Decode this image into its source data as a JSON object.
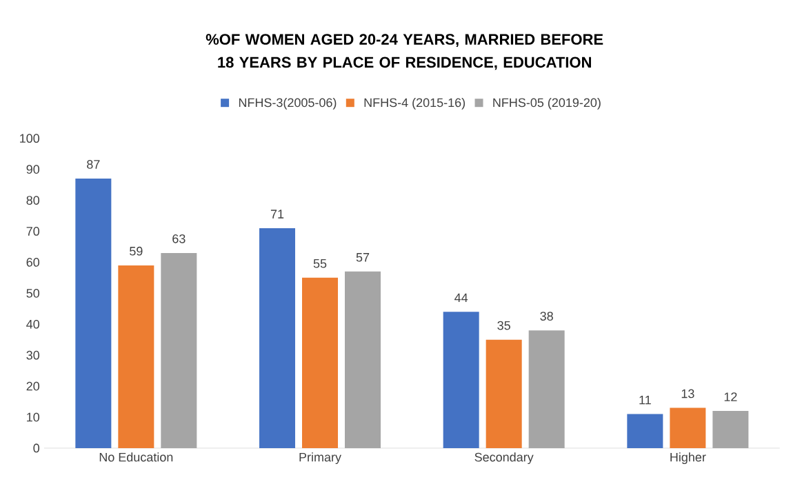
{
  "chart_data": {
    "type": "bar",
    "title": "%OF WOMEN AGED 20-24 YEARS, MARRIED BEFORE 18 YEARS BY PLACE OF RESIDENCE, EDUCATION",
    "categories": [
      "No Education",
      "Primary",
      "Secondary",
      "Higher"
    ],
    "series": [
      {
        "name": "NFHS-3(2005-06)",
        "color": "#4472c4",
        "values": [
          87,
          71,
          44,
          11
        ]
      },
      {
        "name": "NFHS-4 (2015-16)",
        "color": "#ed7d31",
        "values": [
          59,
          55,
          35,
          13
        ]
      },
      {
        "name": "NFHS-05 (2019-20)",
        "color": "#a5a5a5",
        "values": [
          63,
          57,
          38,
          12
        ]
      }
    ],
    "ylim": [
      0,
      100
    ],
    "yticks": [
      0,
      10,
      20,
      30,
      40,
      50,
      60,
      70,
      80,
      90,
      100
    ],
    "data_labels": true,
    "legend": "top"
  }
}
